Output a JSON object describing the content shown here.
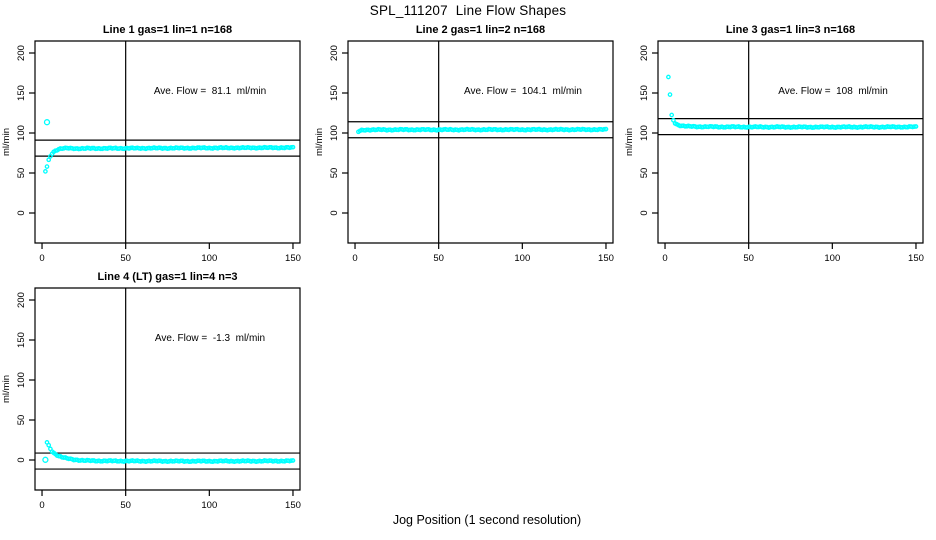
{
  "page": {
    "title": "SPL_111207  Line Flow Shapes",
    "xlabel": "Jog Position (1 second resolution)"
  },
  "colors": {
    "points": "#00ffff",
    "axis": "#000000",
    "text": "#000000"
  },
  "chart_data": [
    {
      "type": "scatter",
      "title": "Line 1 gas=1 lin=1 n=168",
      "annotation": "Ave. Flow =  81.1  ml/min",
      "ave_flow_ml_min": 81.1,
      "gas": 1,
      "lin": 1,
      "n": 168,
      "ylabel": "ml/min",
      "xlim": [
        -4.2,
        154.2
      ],
      "ylim": [
        -37.5,
        215
      ],
      "xticks": [
        0,
        50,
        100,
        150
      ],
      "yticks": [
        0,
        50,
        100,
        150,
        200
      ],
      "vline_x": 50,
      "hlines": [
        91.1,
        71.1
      ],
      "points": [
        [
          2,
          52
        ],
        [
          3,
          58
        ],
        [
          4,
          66
        ],
        [
          5,
          71
        ],
        [
          6,
          74.5
        ],
        [
          7,
          76.5
        ],
        [
          8,
          78
        ],
        [
          9,
          79
        ],
        [
          10,
          79.8
        ],
        [
          12,
          80.6
        ],
        [
          15,
          80.9
        ],
        [
          20,
          80.6
        ],
        [
          30,
          80.7
        ],
        [
          40,
          80.8
        ],
        [
          50,
          80.9
        ],
        [
          60,
          81.0
        ],
        [
          80,
          81.1
        ],
        [
          100,
          81.3
        ],
        [
          120,
          81.5
        ],
        [
          150,
          81.7
        ]
      ],
      "outliers": [
        [
          3,
          113.5
        ]
      ]
    },
    {
      "type": "scatter",
      "title": "Line 2 gas=1 lin=2 n=168",
      "annotation": "Ave. Flow =  104.1  ml/min",
      "ave_flow_ml_min": 104.1,
      "gas": 1,
      "lin": 2,
      "n": 168,
      "ylabel": "ml/min",
      "xlim": [
        -4.2,
        154.2
      ],
      "ylim": [
        -37.5,
        215
      ],
      "xticks": [
        0,
        50,
        100,
        150
      ],
      "yticks": [
        0,
        50,
        100,
        150,
        200
      ],
      "vline_x": 50,
      "hlines": [
        114.1,
        94.1
      ],
      "points": [
        [
          2,
          101.5
        ],
        [
          3,
          102.8
        ],
        [
          4,
          103.4
        ],
        [
          6,
          103.8
        ],
        [
          10,
          104.0
        ],
        [
          20,
          104.0
        ],
        [
          30,
          104.1
        ],
        [
          50,
          104.1
        ],
        [
          80,
          104.2
        ],
        [
          100,
          104.2
        ],
        [
          120,
          104.2
        ],
        [
          150,
          104.3
        ]
      ],
      "outliers": []
    },
    {
      "type": "scatter",
      "title": "Line 3 gas=1 lin=3 n=168",
      "annotation": "Ave. Flow =  108  ml/min",
      "ave_flow_ml_min": 108,
      "gas": 1,
      "lin": 3,
      "n": 168,
      "ylabel": "ml/min",
      "xlim": [
        -4.2,
        154.2
      ],
      "ylim": [
        -37.5,
        215
      ],
      "xticks": [
        0,
        50,
        100,
        150
      ],
      "yticks": [
        0,
        50,
        100,
        150,
        200
      ],
      "vline_x": 50,
      "hlines": [
        118,
        98
      ],
      "points": [
        [
          2,
          170
        ],
        [
          3,
          148
        ],
        [
          4,
          122
        ],
        [
          5,
          116
        ],
        [
          6,
          112.5
        ],
        [
          7,
          111
        ],
        [
          8,
          110
        ],
        [
          10,
          109
        ],
        [
          12,
          108.5
        ],
        [
          15,
          108.2
        ],
        [
          20,
          107.9
        ],
        [
          30,
          107.7
        ],
        [
          50,
          107.5
        ],
        [
          80,
          107.4
        ],
        [
          100,
          107.4
        ],
        [
          120,
          107.5
        ],
        [
          150,
          107.6
        ]
      ],
      "outliers": []
    },
    {
      "type": "scatter",
      "title": "Line 4 (LT) gas=1 lin=4 n=3",
      "annotation": "Ave. Flow =  -1.3  ml/min",
      "ave_flow_ml_min": -1.3,
      "gas": 1,
      "lin": 4,
      "n": 3,
      "ylabel": "ml/min",
      "xlim": [
        -4.2,
        154.2
      ],
      "ylim": [
        -37.5,
        215
      ],
      "xticks": [
        0,
        50,
        100,
        150
      ],
      "yticks": [
        0,
        50,
        100,
        150,
        200
      ],
      "vline_x": 50,
      "hlines": [
        8.7,
        -11.3
      ],
      "points": [
        [
          3,
          22
        ],
        [
          4,
          18
        ],
        [
          5,
          14
        ],
        [
          6,
          11
        ],
        [
          7,
          9
        ],
        [
          8,
          7.5
        ],
        [
          10,
          5
        ],
        [
          12,
          3.5
        ],
        [
          15,
          1.8
        ],
        [
          20,
          0.2
        ],
        [
          25,
          -0.6
        ],
        [
          30,
          -1.0
        ],
        [
          40,
          -1.2
        ],
        [
          50,
          -1.3
        ],
        [
          80,
          -1.5
        ],
        [
          100,
          -1.5
        ],
        [
          120,
          -1.4
        ],
        [
          150,
          -1.2
        ]
      ],
      "outliers": [
        [
          2,
          0.3
        ]
      ]
    }
  ]
}
